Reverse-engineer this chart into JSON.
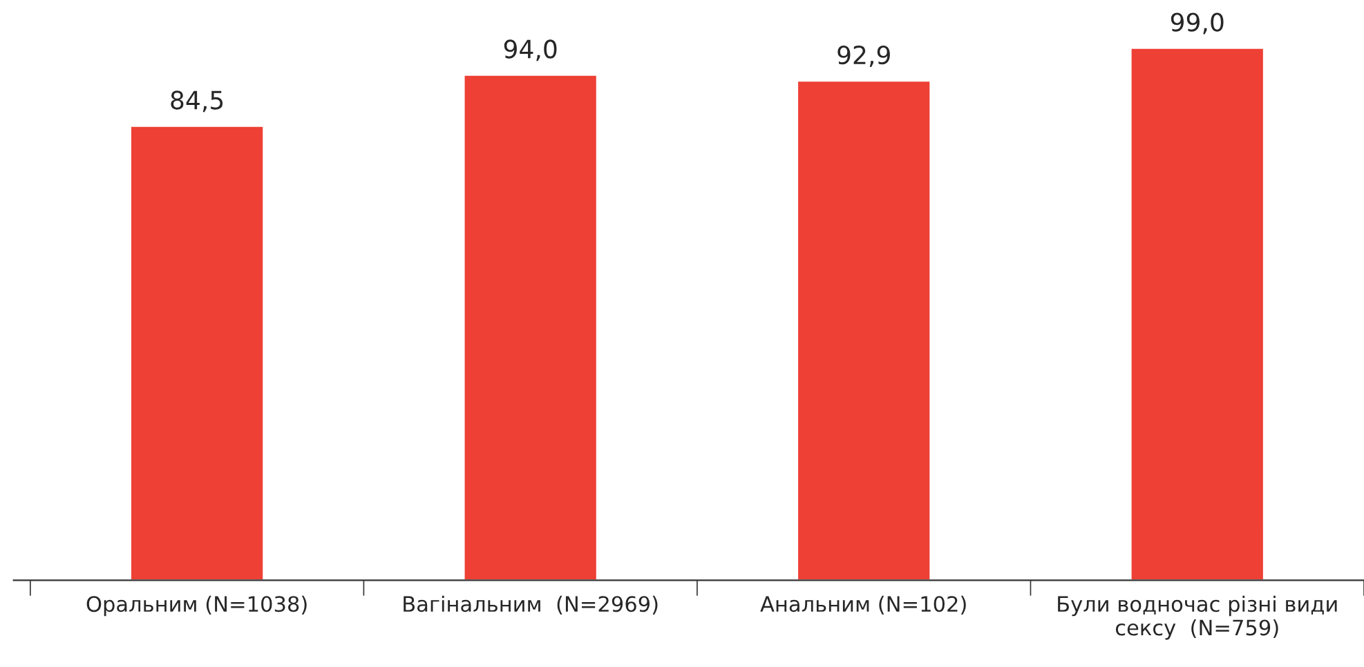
{
  "chart_data": {
    "type": "bar",
    "categories": [
      "Оральним (N=1038)",
      "Вагінальним  (N=2969)",
      "Анальним (N=102)",
      "Були водночас різні види\nсексу  (N=759)"
    ],
    "values": [
      84.5,
      94.0,
      92.9,
      99.0
    ],
    "value_labels": [
      "84,5",
      "94,0",
      "92,9",
      "99,0"
    ],
    "color": "#ee4035",
    "tick_labels": "x",
    "grid": false,
    "legend": false
  }
}
